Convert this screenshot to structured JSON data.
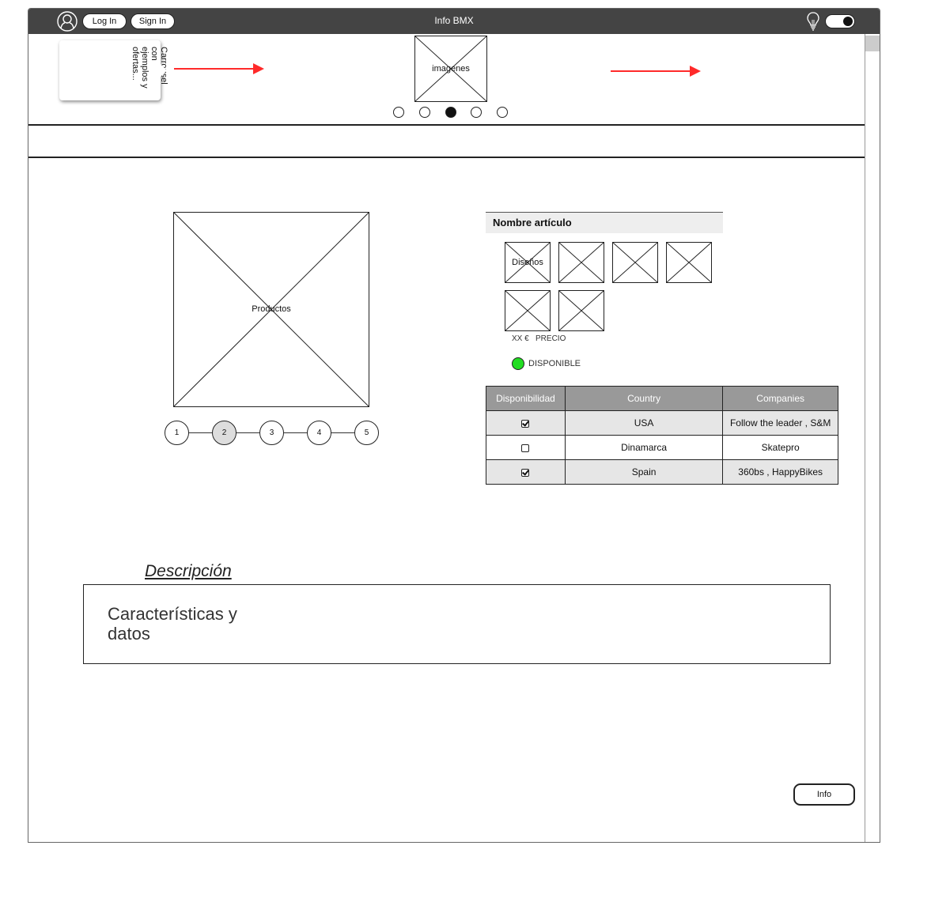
{
  "titlebar": {
    "title": "Info BMX",
    "login_label": "Log In",
    "signin_label": "Sign In",
    "user_icon": "user-icon",
    "bulb_icon": "lightbulb-icon",
    "toggle_state": "on"
  },
  "carousel": {
    "callout_text": "Carrousel con ejemplos y ofertas...",
    "image_label": "imagenes",
    "dots": 5,
    "active_dot": 3,
    "arrow_color": "#ff2a2a"
  },
  "product": {
    "image_label": "Productos",
    "steps": [
      "1",
      "2",
      "3",
      "4",
      "5"
    ],
    "active_step": 2
  },
  "article": {
    "name": "Nombre artículo",
    "designs_label": "Diseños",
    "price_text": "XX €   PRECIO",
    "availability_label": "DISPONIBLE",
    "availability_color": "#22dd22"
  },
  "table": {
    "headers": [
      "Disponibilidad",
      "Country",
      "Companies"
    ],
    "rows": [
      {
        "available": true,
        "country": "USA",
        "companies": "Follow the leader , S&M"
      },
      {
        "available": false,
        "country": "Dinamarca",
        "companies": "Skatepro"
      },
      {
        "available": true,
        "country": "Spain",
        "companies": "360bs , HappyBikes"
      }
    ]
  },
  "description": {
    "title": "Descripción",
    "text": "Características y datos"
  },
  "info_button": "Info"
}
